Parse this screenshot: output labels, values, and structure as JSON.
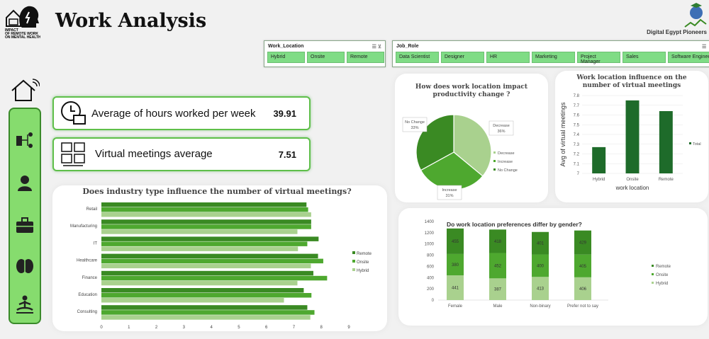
{
  "header": {
    "title": "Work Analysis",
    "logo_text": "IMPACT OF REMOTE WORK ON MENTAL HEALTH",
    "partner_logo_text": "Digital Egypt Pioneers"
  },
  "slicers": {
    "work_location": {
      "label": "Work_Location",
      "items": [
        "Hybrid",
        "Onsite",
        "Remote"
      ]
    },
    "job_role": {
      "label": "Job_Role",
      "items": [
        "Data Scientist",
        "Designer",
        "HR",
        "Marketing",
        "Project Manager",
        "Sales",
        "Software Engineer"
      ]
    }
  },
  "sidebar": {
    "items": [
      "home-icon",
      "network-icon",
      "person-icon",
      "briefcase-icon",
      "brain-icon",
      "meditation-icon"
    ]
  },
  "kpis": [
    {
      "label": "Average of hours worked per week",
      "value": "39.91",
      "icon": "clock-briefcase-icon"
    },
    {
      "label": "Virtual meetings average",
      "value": "7.51",
      "icon": "video-meeting-icon"
    }
  ],
  "colors": {
    "remote": "#3a8a23",
    "onsite": "#4ea82f",
    "hybrid": "#a9d18e",
    "accent": "#86dc6e",
    "bar": "#1e6b2a"
  },
  "chart_data": [
    {
      "type": "bar",
      "orientation": "horizontal",
      "title": "Does industry type influence the number of virtual meetings?",
      "categories": [
        "Retail",
        "Manufacturing",
        "IT",
        "Healthcare",
        "Finance",
        "Education",
        "Consulting"
      ],
      "series": [
        {
          "name": "Remote",
          "values": [
            7.46,
            7.63,
            7.9,
            7.88,
            7.71,
            7.36,
            7.49
          ]
        },
        {
          "name": "Onsite",
          "values": [
            7.52,
            7.63,
            7.49,
            8.07,
            8.21,
            7.64,
            7.75
          ]
        },
        {
          "name": "Hybrid",
          "values": [
            7.63,
            7.13,
            7.15,
            7.62,
            7.13,
            6.64,
            7.6
          ]
        }
      ],
      "xlim": [
        0,
        9
      ],
      "xticks": [
        "0",
        "1",
        "2",
        "3",
        "4",
        "5",
        "6",
        "7",
        "8",
        "9"
      ],
      "legend": "right"
    },
    {
      "type": "pie",
      "title": "How does work location impact productivity change ?",
      "categories": [
        "Decrease",
        "Increase",
        "No Change"
      ],
      "values": [
        36,
        31,
        33
      ],
      "labels": [
        "Decrease 36%",
        "Increase 31%",
        "No Change 33%"
      ],
      "legend": "right"
    },
    {
      "type": "bar",
      "title": "Work location influence on the number of virtual meetings",
      "categories": [
        "Hybrid",
        "Onsite",
        "Remote"
      ],
      "series": [
        {
          "name": "Total",
          "values": [
            7.27,
            7.75,
            7.64
          ]
        }
      ],
      "xlabel": "work location",
      "ylabel": "Avg of virtual meetings",
      "ylim": [
        7,
        7.8
      ],
      "yticks": [
        "7",
        "7.1",
        "7.2",
        "7.3",
        "7.4",
        "7.5",
        "7.6",
        "7.7",
        "7.8"
      ],
      "legend": "right"
    },
    {
      "type": "bar",
      "stacked": true,
      "title": "Do work location preferences differ by gender?",
      "categories": [
        "Female",
        "Male",
        "Non-binary",
        "Prefer not to say"
      ],
      "series": [
        {
          "name": "Hybrid",
          "values": [
            441,
            387,
            413,
            406
          ]
        },
        {
          "name": "Onsite",
          "values": [
            380,
            452,
            400,
            405
          ]
        },
        {
          "name": "Remote",
          "values": [
            455,
            418,
            401,
            429
          ]
        }
      ],
      "ylim": [
        0,
        1400
      ],
      "yticks": [
        "0",
        "200",
        "400",
        "600",
        "800",
        "1000",
        "1200",
        "1400"
      ],
      "legend": "right"
    }
  ]
}
